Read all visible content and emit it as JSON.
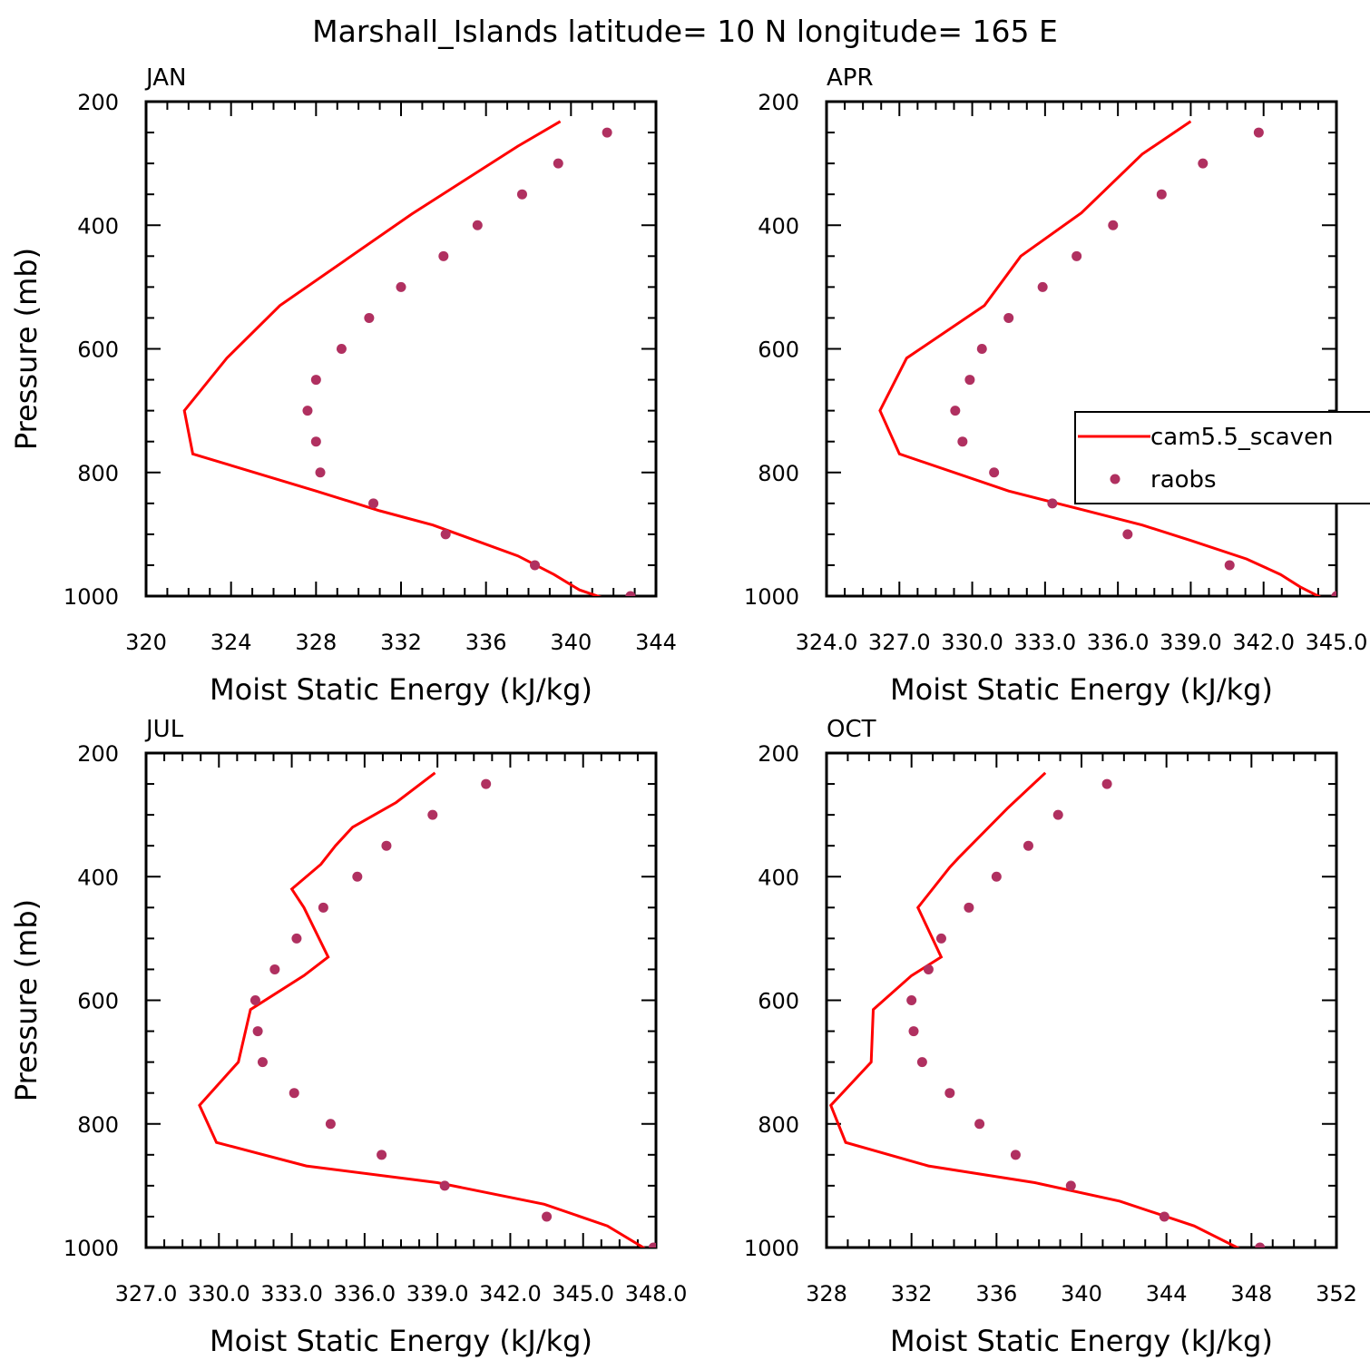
{
  "title": "Marshall_Islands  latitude= 10 N longitude= 165 E",
  "legend": {
    "model_label": "cam5.5_scaven",
    "obs_label": "raobs"
  },
  "colors": {
    "model_line": "#ff0000",
    "obs_marker": "#b03060",
    "frame": "#000000"
  },
  "chart_data": [
    {
      "panel": "JAN",
      "type": "line+scatter",
      "xlabel": "Moist Static Energy (kJ/kg)",
      "ylabel": "Pressure (mb)",
      "xlim": [
        320,
        344
      ],
      "ylim": [
        200,
        1000
      ],
      "y_inverted": true,
      "xticks": [
        320,
        324,
        328,
        332,
        336,
        340,
        344
      ],
      "xtick_labels": [
        "320",
        "324",
        "328",
        "332",
        "336",
        "340",
        "344"
      ],
      "yticks": [
        200,
        400,
        600,
        800,
        1000
      ],
      "ytick_labels": [
        "200",
        "400",
        "600",
        "800",
        "1000"
      ],
      "series": [
        {
          "name": "cam5.5_scaven",
          "kind": "line",
          "x": [
            339.5,
            337.5,
            332.5,
            326.3,
            323.8,
            321.8,
            322.2,
            328.0,
            331.0,
            333.5,
            335.5,
            337.5,
            339.2,
            340.4,
            341.5
          ],
          "y": [
            232,
            272,
            382,
            530,
            615,
            700,
            770,
            830,
            862,
            885,
            910,
            935,
            965,
            990,
            1003
          ]
        },
        {
          "name": "raobs",
          "kind": "scatter",
          "x": [
            341.7,
            339.4,
            337.7,
            335.6,
            334.0,
            332.0,
            330.5,
            329.2,
            328.0,
            327.6,
            328.0,
            328.2,
            330.7,
            334.1,
            338.3,
            342.8
          ],
          "y": [
            250,
            300,
            350,
            400,
            450,
            500,
            550,
            600,
            650,
            700,
            750,
            800,
            850,
            900,
            950,
            1000
          ]
        }
      ]
    },
    {
      "panel": "APR",
      "type": "line+scatter",
      "xlabel": "Moist Static Energy (kJ/kg)",
      "ylabel": "",
      "xlim": [
        324.0,
        345.0
      ],
      "ylim": [
        200,
        1000
      ],
      "y_inverted": true,
      "xticks": [
        324,
        327,
        330,
        333,
        336,
        339,
        342,
        345
      ],
      "xtick_labels": [
        "324.0",
        "327.0",
        "330.0",
        "333.0",
        "336.0",
        "339.0",
        "342.0",
        "345.0"
      ],
      "yticks": [
        200,
        400,
        600,
        800,
        1000
      ],
      "ytick_labels": [
        "200",
        "400",
        "600",
        "800",
        "1000"
      ],
      "series": [
        {
          "name": "cam5.5_scaven",
          "kind": "line",
          "x": [
            339.0,
            337.0,
            334.5,
            332.0,
            330.5,
            327.3,
            326.2,
            327.0,
            331.5,
            334.5,
            337.0,
            339.0,
            341.3,
            342.7,
            343.5,
            344.4
          ],
          "y": [
            232,
            285,
            380,
            450,
            530,
            615,
            700,
            770,
            830,
            860,
            885,
            910,
            940,
            965,
            985,
            1003
          ]
        },
        {
          "name": "raobs",
          "kind": "scatter",
          "x": [
            341.8,
            339.5,
            337.8,
            335.8,
            334.3,
            332.9,
            331.5,
            330.4,
            329.9,
            329.3,
            329.6,
            330.9,
            333.3,
            336.4,
            340.6,
            345.0
          ],
          "y": [
            250,
            300,
            350,
            400,
            450,
            500,
            550,
            600,
            650,
            700,
            750,
            800,
            850,
            900,
            950,
            1000
          ]
        }
      ]
    },
    {
      "panel": "JUL",
      "type": "line+scatter",
      "xlabel": "Moist Static Energy (kJ/kg)",
      "ylabel": "Pressure (mb)",
      "xlim": [
        327.0,
        348.0
      ],
      "ylim": [
        200,
        1000
      ],
      "y_inverted": true,
      "xticks": [
        327,
        330,
        333,
        336,
        339,
        342,
        345,
        348
      ],
      "xtick_labels": [
        "327.0",
        "330.0",
        "333.0",
        "336.0",
        "339.0",
        "342.0",
        "345.0",
        "348.0"
      ],
      "yticks": [
        200,
        400,
        600,
        800,
        1000
      ],
      "ytick_labels": [
        "200",
        "400",
        "600",
        "800",
        "1000"
      ],
      "series": [
        {
          "name": "cam5.5_scaven",
          "kind": "line",
          "x": [
            338.9,
            337.3,
            335.5,
            334.8,
            334.2,
            333.0,
            333.5,
            334.5,
            333.5,
            331.3,
            330.8,
            329.2,
            329.9,
            333.6,
            339.0,
            343.4,
            346.0,
            347.6
          ],
          "y": [
            232,
            280,
            320,
            350,
            380,
            420,
            450,
            530,
            560,
            615,
            700,
            770,
            830,
            868,
            895,
            930,
            965,
            1003
          ]
        },
        {
          "name": "raobs",
          "kind": "scatter",
          "x": [
            341.0,
            338.8,
            336.9,
            335.7,
            334.3,
            333.2,
            332.3,
            331.5,
            331.6,
            331.8,
            333.1,
            334.6,
            336.7,
            339.3,
            343.5,
            347.9
          ],
          "y": [
            250,
            300,
            350,
            400,
            450,
            500,
            550,
            600,
            650,
            700,
            750,
            800,
            850,
            900,
            950,
            1000
          ]
        }
      ]
    },
    {
      "panel": "OCT",
      "type": "line+scatter",
      "xlabel": "Moist Static Energy (kJ/kg)",
      "ylabel": "",
      "xlim": [
        328,
        352
      ],
      "ylim": [
        200,
        1000
      ],
      "y_inverted": true,
      "xticks": [
        328,
        332,
        336,
        340,
        344,
        348,
        352
      ],
      "xtick_labels": [
        "328",
        "332",
        "336",
        "340",
        "344",
        "348",
        "352"
      ],
      "yticks": [
        200,
        400,
        600,
        800,
        1000
      ],
      "ytick_labels": [
        "200",
        "400",
        "600",
        "800",
        "1000"
      ],
      "series": [
        {
          "name": "cam5.5_scaven",
          "kind": "line",
          "x": [
            338.3,
            336.5,
            334.2,
            333.8,
            332.3,
            333.4,
            332.0,
            330.2,
            330.1,
            328.2,
            328.9,
            332.8,
            337.8,
            341.8,
            345.3,
            347.5
          ],
          "y": [
            232,
            290,
            370,
            385,
            450,
            530,
            560,
            615,
            700,
            770,
            830,
            868,
            895,
            925,
            965,
            1003
          ]
        },
        {
          "name": "raobs",
          "kind": "scatter",
          "x": [
            341.2,
            338.9,
            337.5,
            336.0,
            334.7,
            333.4,
            332.8,
            332.0,
            332.1,
            332.5,
            333.8,
            335.2,
            336.9,
            339.5,
            343.9,
            348.4
          ],
          "y": [
            250,
            300,
            350,
            400,
            450,
            500,
            550,
            600,
            650,
            700,
            750,
            800,
            850,
            900,
            950,
            1000
          ]
        }
      ]
    }
  ]
}
